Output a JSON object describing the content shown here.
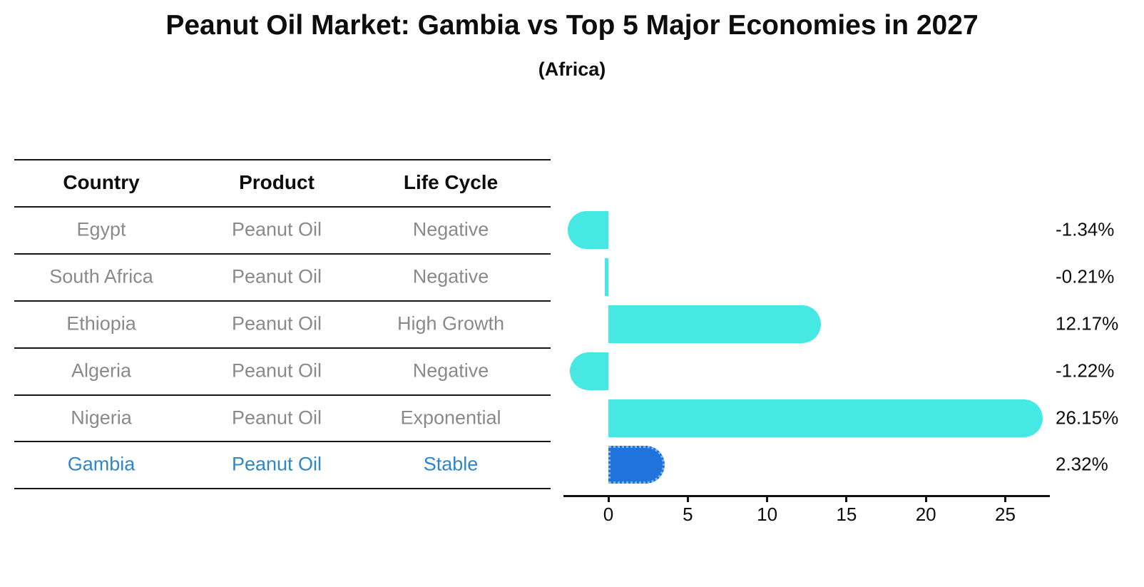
{
  "header": {
    "title": "Peanut Oil Market: Gambia vs Top 5 Major Economies in 2027",
    "subtitle": "(Africa)"
  },
  "table": {
    "columns": [
      "Country",
      "Product",
      "Life Cycle"
    ],
    "rows": [
      {
        "country": "Egypt",
        "product": "Peanut Oil",
        "life_cycle": "Negative",
        "highlight": false
      },
      {
        "country": "South Africa",
        "product": "Peanut Oil",
        "life_cycle": "Negative",
        "highlight": false
      },
      {
        "country": "Ethiopia",
        "product": "Peanut Oil",
        "life_cycle": "High Growth",
        "highlight": false
      },
      {
        "country": "Algeria",
        "product": "Peanut Oil",
        "life_cycle": "Negative",
        "highlight": false
      },
      {
        "country": "Nigeria",
        "product": "Peanut Oil",
        "life_cycle": "Exponential",
        "highlight": false
      },
      {
        "country": "Gambia",
        "product": "Peanut Oil",
        "life_cycle": "Stable",
        "highlight": true
      }
    ]
  },
  "chart_data": {
    "type": "bar",
    "orientation": "horizontal",
    "title": "Peanut Oil Market: Gambia vs Top 5 Major Economies in 2027 (Africa)",
    "categories": [
      "Egypt",
      "South Africa",
      "Ethiopia",
      "Algeria",
      "Nigeria",
      "Gambia"
    ],
    "values": [
      -1.34,
      -0.21,
      12.17,
      -1.22,
      26.15,
      2.32
    ],
    "value_labels": [
      "-1.34%",
      "-0.21%",
      "12.17%",
      "-1.22%",
      "26.15%",
      "2.32%"
    ],
    "x_ticks": [
      0,
      5,
      10,
      15,
      20,
      25
    ],
    "xlim": [
      -2.8,
      27.8
    ],
    "grid": false,
    "legend": false,
    "colors": {
      "bar": "#45E8E2",
      "highlight_bar": "#2173DC",
      "highlight_bar_border": "#7EB6F0",
      "highlight_text": "#2E86CB",
      "row_text": "#8A8A8A",
      "axis_text": "#0D0D0D"
    }
  }
}
